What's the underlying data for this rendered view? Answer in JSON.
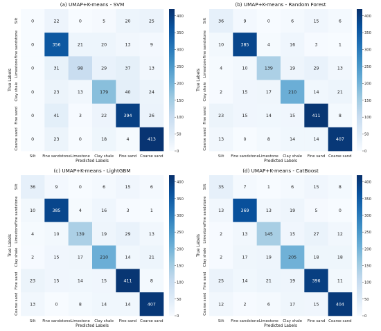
{
  "chart_data": [
    {
      "type": "heatmap",
      "title": "(a) UMAP+K-means - SVM",
      "xlabel": "Predicted Labels",
      "ylabel": "True Labels",
      "x_categories": [
        "Silt",
        "Fine sandstone",
        "Limestone",
        "Clay shale",
        "Fine sand",
        "Coarse sand"
      ],
      "y_categories": [
        "Silt",
        "Fine sandstone",
        "Limestone",
        "Clay shale",
        "Fine sand",
        "Coarse sand"
      ],
      "values": [
        [
          0,
          22,
          0,
          5,
          20,
          25
        ],
        [
          0,
          356,
          21,
          20,
          13,
          9
        ],
        [
          0,
          31,
          98,
          29,
          37,
          13
        ],
        [
          0,
          23,
          13,
          179,
          40,
          24
        ],
        [
          0,
          41,
          3,
          22,
          394,
          26
        ],
        [
          0,
          23,
          0,
          18,
          4,
          413
        ]
      ],
      "colorbar": {
        "range": [
          0,
          420
        ],
        "ticks": [
          0,
          50,
          100,
          150,
          200,
          250,
          300,
          350,
          400
        ]
      }
    },
    {
      "type": "heatmap",
      "title": "(b) UMAP+K-means - Random Forest",
      "xlabel": "Predicted Labels",
      "ylabel": "True Labels",
      "x_categories": [
        "Silt",
        "Fine sandstone",
        "Limestone",
        "Clay shale",
        "Fine sand",
        "Coarse sand"
      ],
      "y_categories": [
        "Silt",
        "Fine sandstone",
        "Limestone",
        "Clay shale",
        "Fine sand",
        "Coarse sand"
      ],
      "values": [
        [
          36,
          9,
          0,
          6,
          15,
          6
        ],
        [
          10,
          385,
          4,
          16,
          3,
          1
        ],
        [
          4,
          10,
          139,
          19,
          29,
          13
        ],
        [
          2,
          15,
          17,
          210,
          14,
          21
        ],
        [
          23,
          15,
          14,
          15,
          411,
          8
        ],
        [
          13,
          0,
          8,
          14,
          14,
          407
        ]
      ],
      "colorbar": {
        "range": [
          0,
          420
        ],
        "ticks": [
          0,
          50,
          100,
          150,
          200,
          250,
          300,
          350,
          400
        ]
      }
    },
    {
      "type": "heatmap",
      "title": "(c) UMAP+K-means - LightGBM",
      "xlabel": "Predicted Labels",
      "ylabel": "True Labels",
      "x_categories": [
        "Silt",
        "Fine sandstone",
        "Limestone",
        "Clay shale",
        "Fine sand",
        "Coarse sand"
      ],
      "y_categories": [
        "Silt",
        "Fine sandstone",
        "Limestone",
        "Clay shale",
        "Fine sand",
        "Coarse sand"
      ],
      "values": [
        [
          36,
          9,
          0,
          6,
          15,
          6
        ],
        [
          10,
          385,
          4,
          16,
          3,
          1
        ],
        [
          4,
          10,
          139,
          19,
          29,
          13
        ],
        [
          2,
          15,
          17,
          210,
          14,
          21
        ],
        [
          23,
          15,
          14,
          15,
          411,
          8
        ],
        [
          13,
          0,
          8,
          14,
          14,
          407
        ]
      ],
      "colorbar": {
        "range": [
          0,
          420
        ],
        "ticks": [
          0,
          50,
          100,
          150,
          200,
          250,
          300,
          350,
          400
        ]
      }
    },
    {
      "type": "heatmap",
      "title": "(d) UMAP+K-means - CatBoost",
      "xlabel": "Predicted Labels",
      "ylabel": "True Labels",
      "x_categories": [
        "Silt",
        "Fine sandstone",
        "Limestone",
        "Clay shale",
        "Fine sand",
        "Coarse sand"
      ],
      "y_categories": [
        "Silt",
        "Fine sandstone",
        "Limestone",
        "Clay shale",
        "Fine sand",
        "Coarse sand"
      ],
      "values": [
        [
          35,
          7,
          1,
          6,
          15,
          8
        ],
        [
          13,
          369,
          13,
          19,
          5,
          0
        ],
        [
          2,
          13,
          145,
          15,
          27,
          12
        ],
        [
          2,
          17,
          19,
          205,
          18,
          18
        ],
        [
          25,
          14,
          21,
          19,
          396,
          11
        ],
        [
          12,
          2,
          6,
          17,
          15,
          404
        ]
      ],
      "colorbar": {
        "range": [
          0,
          420
        ],
        "ticks": [
          0,
          50,
          100,
          150,
          200,
          250,
          300,
          350,
          400
        ]
      }
    }
  ]
}
